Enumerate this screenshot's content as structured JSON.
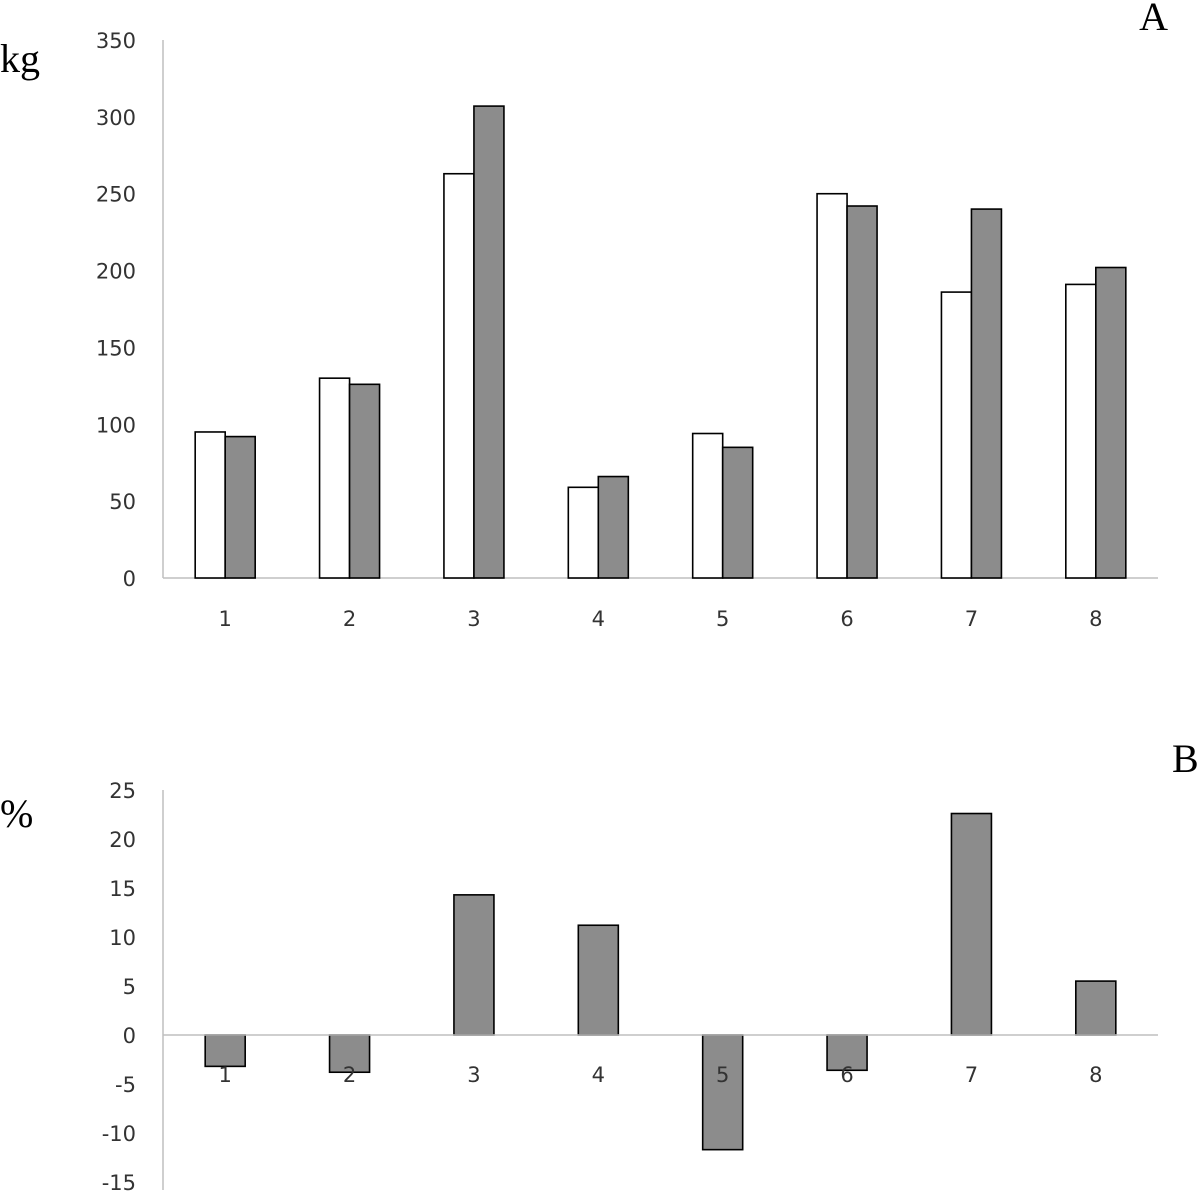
{
  "chart_data": [
    {
      "panel": "A",
      "type": "bar",
      "unit": "kg",
      "categories": [
        "1",
        "2",
        "3",
        "4",
        "5",
        "6",
        "7",
        "8"
      ],
      "series": [
        {
          "values": [
            95,
            130,
            263,
            59,
            94,
            250,
            186,
            191
          ],
          "color": "#ffffff"
        },
        {
          "values": [
            92,
            126,
            307,
            66,
            85,
            242,
            240,
            202
          ],
          "color": "#8c8c8c"
        }
      ],
      "ylim": [
        0,
        350
      ],
      "yticks": [
        0,
        50,
        100,
        150,
        200,
        250,
        300,
        350
      ],
      "grid": false,
      "legend": "none"
    },
    {
      "panel": "B",
      "type": "bar",
      "unit": "%",
      "categories": [
        "1",
        "2",
        "3",
        "4",
        "5",
        "6",
        "7",
        "8"
      ],
      "series": [
        {
          "values": [
            -3.2,
            -3.8,
            14.3,
            11.2,
            -11.7,
            -3.6,
            22.6,
            5.5
          ],
          "color": "#8c8c8c"
        }
      ],
      "ylim": [
        -15,
        25
      ],
      "yticks": [
        -15,
        -10,
        -5,
        0,
        5,
        10,
        15,
        20,
        25
      ],
      "grid": false,
      "legend": "none"
    }
  ]
}
